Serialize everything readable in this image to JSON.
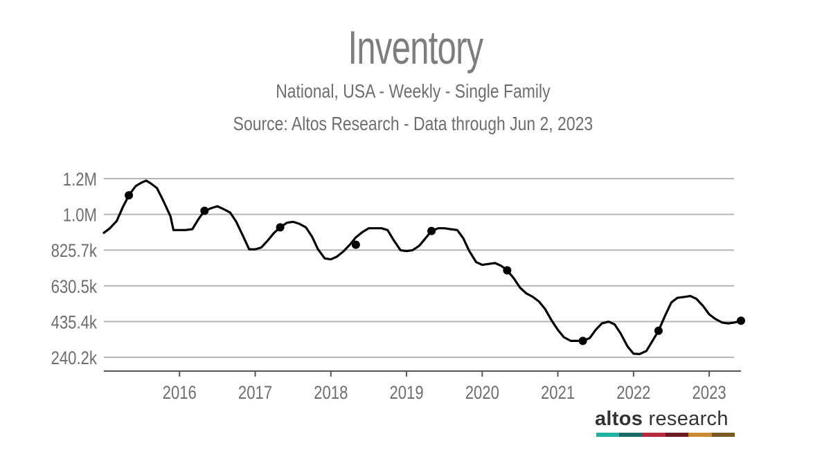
{
  "chart_data": {
    "type": "line",
    "title": "Inventory",
    "subtitle": "National, USA - Weekly - Single Family",
    "source": "Source: Altos Research - Data through Jun 2, 2023",
    "y_ticks": [
      "240.2k",
      "435.4k",
      "630.5k",
      "825.7k",
      "1.0M",
      "1.2M"
    ],
    "y_tick_values": [
      240200,
      435400,
      630500,
      825700,
      1020900,
      1216000
    ],
    "ylim": [
      165000,
      1216000
    ],
    "x_ticks": [
      "2016",
      "2017",
      "2018",
      "2019",
      "2020",
      "2021",
      "2022",
      "2023"
    ],
    "x_tick_values": [
      2016,
      2017,
      2018,
      2019,
      2020,
      2021,
      2022,
      2023
    ],
    "xlim": [
      2015.0,
      2023.42
    ],
    "grid": "horizontal",
    "line_color": "#000000",
    "series": [
      {
        "x": [
          2015.0,
          2015.08,
          2015.17,
          2015.25,
          2015.33,
          2015.42,
          2015.5,
          2015.56,
          2015.62,
          2015.7,
          2015.78,
          2015.88,
          2015.92,
          2016.0,
          2016.08,
          2016.17,
          2016.25,
          2016.33,
          2016.42,
          2016.5,
          2016.58,
          2016.67,
          2016.75,
          2016.83,
          2016.92,
          2017.0,
          2017.08,
          2017.17,
          2017.25,
          2017.33,
          2017.42,
          2017.5,
          2017.58,
          2017.67,
          2017.75,
          2017.83,
          2017.92,
          2018.0,
          2018.08,
          2018.17,
          2018.25,
          2018.33,
          2018.42,
          2018.5,
          2018.58,
          2018.67,
          2018.75,
          2018.83,
          2018.92,
          2019.0,
          2019.08,
          2019.17,
          2019.25,
          2019.33,
          2019.42,
          2019.5,
          2019.58,
          2019.67,
          2019.75,
          2019.83,
          2019.92,
          2020.0,
          2020.08,
          2020.17,
          2020.25,
          2020.33,
          2020.42,
          2020.5,
          2020.58,
          2020.67,
          2020.75,
          2020.83,
          2020.92,
          2021.0,
          2021.08,
          2021.17,
          2021.25,
          2021.33,
          2021.42,
          2021.5,
          2021.58,
          2021.67,
          2021.75,
          2021.83,
          2021.92,
          2022.0,
          2022.08,
          2022.17,
          2022.25,
          2022.33,
          2022.42,
          2022.5,
          2022.58,
          2022.67,
          2022.75,
          2022.83,
          2022.92,
          2023.0,
          2023.08,
          2023.17,
          2023.25,
          2023.33,
          2023.42
        ],
        "values": [
          920000,
          945000,
          985000,
          1060000,
          1125000,
          1175000,
          1195000,
          1205000,
          1190000,
          1165000,
          1100000,
          1010000,
          935000,
          935000,
          935000,
          940000,
          995000,
          1040000,
          1055000,
          1065000,
          1050000,
          1030000,
          980000,
          910000,
          830000,
          830000,
          840000,
          880000,
          920000,
          950000,
          975000,
          980000,
          970000,
          950000,
          900000,
          830000,
          780000,
          775000,
          790000,
          820000,
          855000,
          895000,
          925000,
          945000,
          945000,
          945000,
          935000,
          880000,
          825000,
          820000,
          825000,
          850000,
          890000,
          930000,
          945000,
          945000,
          940000,
          935000,
          890000,
          820000,
          760000,
          745000,
          750000,
          755000,
          740000,
          715000,
          670000,
          620000,
          590000,
          570000,
          545000,
          505000,
          440000,
          390000,
          350000,
          330000,
          330000,
          330000,
          345000,
          390000,
          425000,
          435000,
          420000,
          370000,
          300000,
          260000,
          258000,
          275000,
          330000,
          385000,
          470000,
          540000,
          565000,
          570000,
          575000,
          560000,
          520000,
          475000,
          450000,
          430000,
          425000,
          430000,
          440000
        ]
      }
    ],
    "markers": [
      {
        "x": 2015.33,
        "y": 1125000
      },
      {
        "x": 2016.33,
        "y": 1040000
      },
      {
        "x": 2017.33,
        "y": 950000
      },
      {
        "x": 2018.33,
        "y": 855000
      },
      {
        "x": 2019.33,
        "y": 930000
      },
      {
        "x": 2020.33,
        "y": 715000
      },
      {
        "x": 2021.33,
        "y": 330000
      },
      {
        "x": 2022.33,
        "y": 385000
      },
      {
        "x": 2023.42,
        "y": 440000
      }
    ]
  },
  "logo": {
    "word1": "altos",
    "word2": " research",
    "bar_colors": [
      "#1fb3a8",
      "#1d6b6b",
      "#b8293a",
      "#6e1a26",
      "#c98a32",
      "#7a5a24"
    ]
  }
}
